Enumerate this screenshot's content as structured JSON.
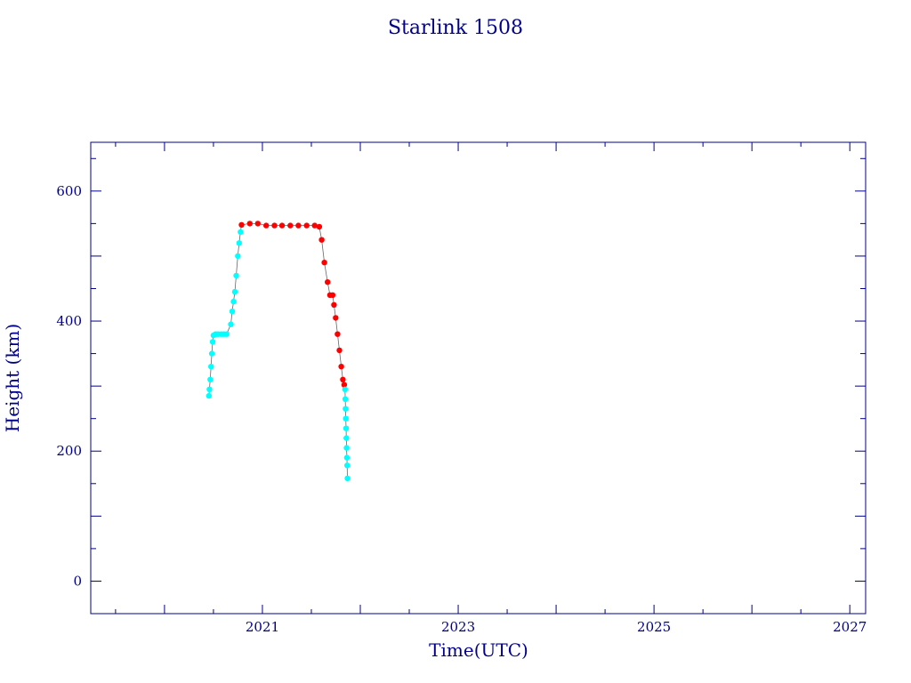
{
  "chart_data": {
    "type": "scatter",
    "title": "Starlink 1508",
    "xlabel": "Time(UTC)",
    "ylabel": "Height (km)",
    "xlim": [
      "2019-04-01",
      "2027-03-01"
    ],
    "ylim": [
      -50,
      675
    ],
    "x_ticks": [
      "2021",
      "2023",
      "2025",
      "2027"
    ],
    "y_ticks": [
      0,
      200,
      400,
      600
    ],
    "grid": false,
    "colors": {
      "axis": "#00008b",
      "orbit_raising": "#00ffff",
      "operational": "#ff0000",
      "decay": "#00ffff"
    },
    "series": [
      {
        "points": [
          [
            "2020-06-15",
            285
          ],
          [
            "2020-06-17",
            295
          ],
          [
            "2020-06-20",
            310
          ],
          [
            "2020-06-23",
            330
          ],
          [
            "2020-06-26",
            350
          ],
          [
            "2020-06-29",
            368
          ],
          [
            "2020-07-02",
            378
          ],
          [
            "2020-07-10",
            380
          ],
          [
            "2020-07-20",
            380
          ],
          [
            "2020-08-01",
            380
          ],
          [
            "2020-08-10",
            380
          ],
          [
            "2020-08-20",
            380
          ],
          [
            "2020-09-05",
            395
          ],
          [
            "2020-09-10",
            415
          ],
          [
            "2020-09-15",
            430
          ],
          [
            "2020-09-20",
            445
          ],
          [
            "2020-09-25",
            470
          ],
          [
            "2020-10-01",
            500
          ],
          [
            "2020-10-06",
            520
          ],
          [
            "2020-10-11",
            537
          ]
        ]
      },
      {
        "points": [
          [
            "2020-10-15",
            548
          ],
          [
            "2020-11-15",
            550
          ],
          [
            "2020-12-15",
            550
          ],
          [
            "2021-01-15",
            547
          ],
          [
            "2021-02-15",
            547
          ],
          [
            "2021-03-15",
            547
          ],
          [
            "2021-04-15",
            547
          ],
          [
            "2021-05-15",
            547
          ],
          [
            "2021-06-15",
            547
          ],
          [
            "2021-07-15",
            547
          ],
          [
            "2021-08-01",
            545
          ],
          [
            "2021-08-10",
            525
          ],
          [
            "2021-08-20",
            490
          ],
          [
            "2021-09-01",
            460
          ],
          [
            "2021-09-10",
            440
          ],
          [
            "2021-09-20",
            440
          ],
          [
            "2021-09-25",
            425
          ],
          [
            "2021-10-01",
            405
          ],
          [
            "2021-10-08",
            380
          ],
          [
            "2021-10-15",
            355
          ],
          [
            "2021-10-22",
            330
          ],
          [
            "2021-10-28",
            310
          ],
          [
            "2021-11-02",
            302
          ]
        ]
      },
      {
        "points": [
          [
            "2021-11-05",
            295
          ],
          [
            "2021-11-06",
            280
          ],
          [
            "2021-11-07",
            265
          ],
          [
            "2021-11-08",
            250
          ],
          [
            "2021-11-09",
            235
          ],
          [
            "2021-11-10",
            220
          ],
          [
            "2021-11-11",
            205
          ],
          [
            "2021-11-12",
            190
          ],
          [
            "2021-11-13",
            178
          ],
          [
            "2021-11-14",
            158
          ]
        ]
      }
    ]
  }
}
